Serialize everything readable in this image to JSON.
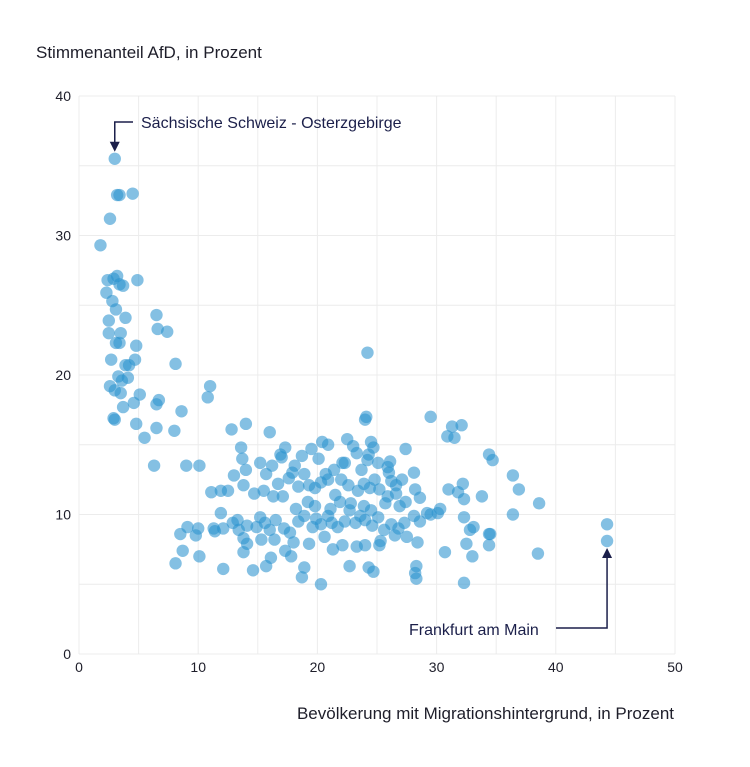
{
  "chart_data": {
    "type": "scatter",
    "ylabel": "Stimmenanteil AfD, in Prozent",
    "xlabel": "Bevölkerung mit Migrationshintergrund, in Prozent",
    "xlim": [
      0,
      50
    ],
    "ylim": [
      0,
      40
    ],
    "xticks": [
      0,
      10,
      20,
      30,
      40,
      50
    ],
    "yticks": [
      0,
      10,
      20,
      30,
      40
    ],
    "grid": true,
    "point_color": "#2b93cf",
    "annotation_color": "#1b1f4a",
    "annotations": [
      {
        "label": "Sächsische Schweiz - Osterzgebirge",
        "x": 3.0,
        "y": 35.5
      },
      {
        "label": "Frankfurt am Main",
        "x": 44.3,
        "y": 8.1
      }
    ],
    "points": [
      [
        3.0,
        35.5
      ],
      [
        3.2,
        32.9
      ],
      [
        3.4,
        32.9
      ],
      [
        4.5,
        33.0
      ],
      [
        2.6,
        31.2
      ],
      [
        1.8,
        29.3
      ],
      [
        2.4,
        26.8
      ],
      [
        2.9,
        26.9
      ],
      [
        3.2,
        27.1
      ],
      [
        3.4,
        26.5
      ],
      [
        3.7,
        26.4
      ],
      [
        4.9,
        26.8
      ],
      [
        2.3,
        25.9
      ],
      [
        2.8,
        25.3
      ],
      [
        3.1,
        24.7
      ],
      [
        3.9,
        24.1
      ],
      [
        2.5,
        23.0
      ],
      [
        3.5,
        23.0
      ],
      [
        3.1,
        22.3
      ],
      [
        3.4,
        22.3
      ],
      [
        4.8,
        22.1
      ],
      [
        2.7,
        21.1
      ],
      [
        4.7,
        21.1
      ],
      [
        3.9,
        20.7
      ],
      [
        4.2,
        20.7
      ],
      [
        3.3,
        19.9
      ],
      [
        3.6,
        19.6
      ],
      [
        4.1,
        19.8
      ],
      [
        2.6,
        19.2
      ],
      [
        3.0,
        18.9
      ],
      [
        3.5,
        18.7
      ],
      [
        5.1,
        18.6
      ],
      [
        4.6,
        18.0
      ],
      [
        3.7,
        17.7
      ],
      [
        2.9,
        16.9
      ],
      [
        3.0,
        16.8
      ],
      [
        4.8,
        16.5
      ],
      [
        5.5,
        15.5
      ],
      [
        2.5,
        23.9
      ],
      [
        6.5,
        24.3
      ],
      [
        6.6,
        23.3
      ],
      [
        7.4,
        23.1
      ],
      [
        8.1,
        20.8
      ],
      [
        6.5,
        17.9
      ],
      [
        6.7,
        18.2
      ],
      [
        6.5,
        16.2
      ],
      [
        8.0,
        16.0
      ],
      [
        8.6,
        17.4
      ],
      [
        11.0,
        19.2
      ],
      [
        10.8,
        18.4
      ],
      [
        6.3,
        13.5
      ],
      [
        9.0,
        13.5
      ],
      [
        10.1,
        13.5
      ],
      [
        13.6,
        14.8
      ],
      [
        14.0,
        16.5
      ],
      [
        16.0,
        15.9
      ],
      [
        12.8,
        16.1
      ],
      [
        13.7,
        14.0
      ],
      [
        14.0,
        13.2
      ],
      [
        15.2,
        13.7
      ],
      [
        15.7,
        12.9
      ],
      [
        16.2,
        13.5
      ],
      [
        17.0,
        14.1
      ],
      [
        17.3,
        14.8
      ],
      [
        18.7,
        14.2
      ],
      [
        19.5,
        14.7
      ],
      [
        20.1,
        14.0
      ],
      [
        20.4,
        15.2
      ],
      [
        20.9,
        15.0
      ],
      [
        22.3,
        13.7
      ],
      [
        22.5,
        15.4
      ],
      [
        23.0,
        14.9
      ],
      [
        23.3,
        14.4
      ],
      [
        24.0,
        16.8
      ],
      [
        24.1,
        17.0
      ],
      [
        24.3,
        14.3
      ],
      [
        24.5,
        15.2
      ],
      [
        24.7,
        14.8
      ],
      [
        25.1,
        13.7
      ],
      [
        24.2,
        21.6
      ],
      [
        26.1,
        13.8
      ],
      [
        27.4,
        14.7
      ],
      [
        27.1,
        12.5
      ],
      [
        29.5,
        17.0
      ],
      [
        30.9,
        15.6
      ],
      [
        31.3,
        16.3
      ],
      [
        32.1,
        16.4
      ],
      [
        31.5,
        15.5
      ],
      [
        34.4,
        14.3
      ],
      [
        34.7,
        13.9
      ],
      [
        28.1,
        13.0
      ],
      [
        36.4,
        12.8
      ],
      [
        36.9,
        11.8
      ],
      [
        38.6,
        10.8
      ],
      [
        36.4,
        10.0
      ],
      [
        38.5,
        7.2
      ],
      [
        33.8,
        11.3
      ],
      [
        31.8,
        11.6
      ],
      [
        31.0,
        11.8
      ],
      [
        32.3,
        11.1
      ],
      [
        32.2,
        12.2
      ],
      [
        30.3,
        10.4
      ],
      [
        29.5,
        10.0
      ],
      [
        28.6,
        11.2
      ],
      [
        27.4,
        10.9
      ],
      [
        26.6,
        11.5
      ],
      [
        28.2,
        11.8
      ],
      [
        11.1,
        11.6
      ],
      [
        11.9,
        11.7
      ],
      [
        12.5,
        11.7
      ],
      [
        13.0,
        12.8
      ],
      [
        13.8,
        12.1
      ],
      [
        14.7,
        11.5
      ],
      [
        15.5,
        11.7
      ],
      [
        16.3,
        11.3
      ],
      [
        16.7,
        12.2
      ],
      [
        17.1,
        11.3
      ],
      [
        17.6,
        12.6
      ],
      [
        18.4,
        12.0
      ],
      [
        18.9,
        12.9
      ],
      [
        19.3,
        12.1
      ],
      [
        19.8,
        11.9
      ],
      [
        20.3,
        12.3
      ],
      [
        20.9,
        12.5
      ],
      [
        21.5,
        11.4
      ],
      [
        22.0,
        12.5
      ],
      [
        22.6,
        12.1
      ],
      [
        23.4,
        11.7
      ],
      [
        23.9,
        12.2
      ],
      [
        24.4,
        11.9
      ],
      [
        24.8,
        12.5
      ],
      [
        25.2,
        11.8
      ],
      [
        25.9,
        11.3
      ],
      [
        26.6,
        12.1
      ],
      [
        9.1,
        9.1
      ],
      [
        8.5,
        8.6
      ],
      [
        9.8,
        8.5
      ],
      [
        11.4,
        8.8
      ],
      [
        12.1,
        9.0
      ],
      [
        12.9,
        9.4
      ],
      [
        13.4,
        8.9
      ],
      [
        14.1,
        9.2
      ],
      [
        14.9,
        9.1
      ],
      [
        15.2,
        9.8
      ],
      [
        15.6,
        9.4
      ],
      [
        16.0,
        8.9
      ],
      [
        16.5,
        9.6
      ],
      [
        17.2,
        9.0
      ],
      [
        17.7,
        8.7
      ],
      [
        18.4,
        9.5
      ],
      [
        18.9,
        9.9
      ],
      [
        19.6,
        9.1
      ],
      [
        19.9,
        9.7
      ],
      [
        20.3,
        9.3
      ],
      [
        20.9,
        9.9
      ],
      [
        21.2,
        9.4
      ],
      [
        21.7,
        9.1
      ],
      [
        22.3,
        9.5
      ],
      [
        22.7,
        10.3
      ],
      [
        23.2,
        9.4
      ],
      [
        23.6,
        9.9
      ],
      [
        24.0,
        9.6
      ],
      [
        24.6,
        9.2
      ],
      [
        25.1,
        9.8
      ],
      [
        25.6,
        8.9
      ],
      [
        26.2,
        9.3
      ],
      [
        26.8,
        9.0
      ],
      [
        27.3,
        9.4
      ],
      [
        28.1,
        9.9
      ],
      [
        28.6,
        9.5
      ],
      [
        29.2,
        10.1
      ],
      [
        30.1,
        10.1
      ],
      [
        32.3,
        9.8
      ],
      [
        32.8,
        8.9
      ],
      [
        33.1,
        9.1
      ],
      [
        34.4,
        8.6
      ],
      [
        34.5,
        8.6
      ],
      [
        32.5,
        7.9
      ],
      [
        34.4,
        7.8
      ],
      [
        33.0,
        7.0
      ],
      [
        32.3,
        5.1
      ],
      [
        28.3,
        6.3
      ],
      [
        28.2,
        5.8
      ],
      [
        28.3,
        5.4
      ],
      [
        25.2,
        7.8
      ],
      [
        24.3,
        6.2
      ],
      [
        24.7,
        5.9
      ],
      [
        22.7,
        6.3
      ],
      [
        21.3,
        7.5
      ],
      [
        20.3,
        5.0
      ],
      [
        18.9,
        6.2
      ],
      [
        18.7,
        5.5
      ],
      [
        17.8,
        7.0
      ],
      [
        17.3,
        7.4
      ],
      [
        16.1,
        6.9
      ],
      [
        15.7,
        6.3
      ],
      [
        14.6,
        6.0
      ],
      [
        13.8,
        7.3
      ],
      [
        12.1,
        6.1
      ],
      [
        10.1,
        7.0
      ],
      [
        8.7,
        7.4
      ],
      [
        8.1,
        6.5
      ],
      [
        10.0,
        9.0
      ],
      [
        11.3,
        9.0
      ],
      [
        11.9,
        10.1
      ],
      [
        13.3,
        9.6
      ],
      [
        13.8,
        8.3
      ],
      [
        14.1,
        7.9
      ],
      [
        15.3,
        8.2
      ],
      [
        16.4,
        8.2
      ],
      [
        18.0,
        8.0
      ],
      [
        19.3,
        7.9
      ],
      [
        20.6,
        8.4
      ],
      [
        22.1,
        7.8
      ],
      [
        23.3,
        7.7
      ],
      [
        24.0,
        7.8
      ],
      [
        25.3,
        8.1
      ],
      [
        26.5,
        8.5
      ],
      [
        27.5,
        8.4
      ],
      [
        28.4,
        8.0
      ],
      [
        30.7,
        7.3
      ],
      [
        44.3,
        9.3
      ],
      [
        44.3,
        8.1
      ],
      [
        18.2,
        10.4
      ],
      [
        19.8,
        10.6
      ],
      [
        21.1,
        10.4
      ],
      [
        22.8,
        10.8
      ],
      [
        23.9,
        10.6
      ],
      [
        24.5,
        10.3
      ],
      [
        25.7,
        10.8
      ],
      [
        26.9,
        10.6
      ],
      [
        20.7,
        12.9
      ],
      [
        21.4,
        13.2
      ],
      [
        22.1,
        13.7
      ],
      [
        23.7,
        13.2
      ],
      [
        24.2,
        13.9
      ],
      [
        19.2,
        10.9
      ],
      [
        21.9,
        10.9
      ],
      [
        17.9,
        13.0
      ],
      [
        16.9,
        14.3
      ],
      [
        18.1,
        13.5
      ],
      [
        26.2,
        12.4
      ],
      [
        26.0,
        13.0
      ],
      [
        25.9,
        13.4
      ]
    ]
  }
}
